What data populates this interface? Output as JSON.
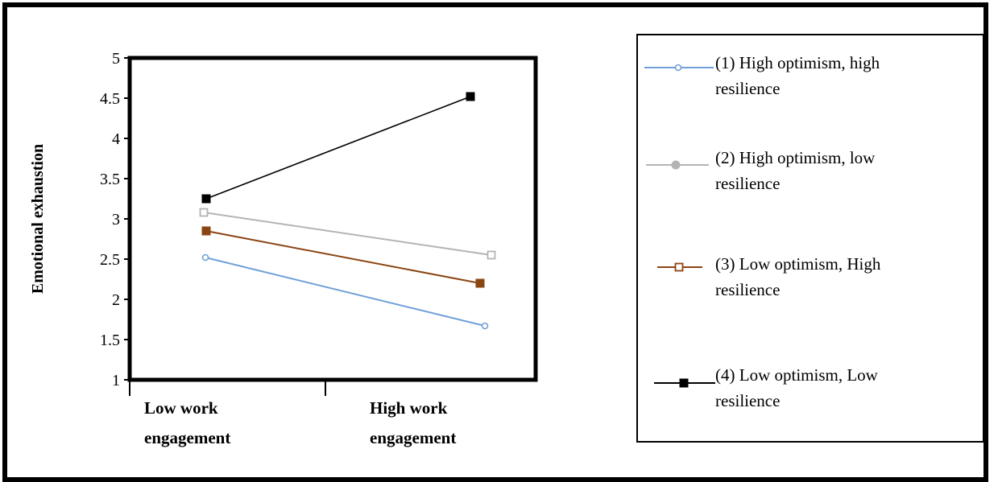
{
  "chart_data": {
    "type": "line",
    "categories": [
      "Low work engagement",
      "High work engagement"
    ],
    "category_labels": [
      [
        "Low work",
        "engagement"
      ],
      [
        "High work",
        "engagement"
      ]
    ],
    "ylabel": "Emotional exhaustion",
    "ylim": [
      1,
      5
    ],
    "yticks": [
      "1",
      "1.5",
      "2",
      "2.5",
      "3",
      "3.5",
      "4",
      "4.5",
      "5"
    ],
    "grid": false,
    "legend_position": "right",
    "series": [
      {
        "name": "(1) High optimism, high resilience",
        "legend_lines": [
          "(1) High optimism, high",
          "resilience"
        ],
        "values": [
          2.52,
          1.67
        ],
        "color": "#6fa0d8",
        "marker": "open-circle"
      },
      {
        "name": "(2) High optimism, low resilience",
        "legend_lines": [
          "(2) High optimism, low",
          "resilience"
        ],
        "values": [
          3.08,
          2.55
        ],
        "color": "#b4b4b4",
        "marker": "filled-circle"
      },
      {
        "name": "(3) Low optimism, High resilience",
        "legend_lines": [
          "(3) Low optimism, High",
          "resilience"
        ],
        "values": [
          2.85,
          2.2
        ],
        "color": "#8b4513",
        "marker": "open-square"
      },
      {
        "name": "(4) Low optimism, Low resilience",
        "legend_lines": [
          "(4) Low optimism, Low",
          "resilience"
        ],
        "values": [
          3.25,
          4.52
        ],
        "color": "#000000",
        "marker": "filled-square"
      }
    ]
  }
}
